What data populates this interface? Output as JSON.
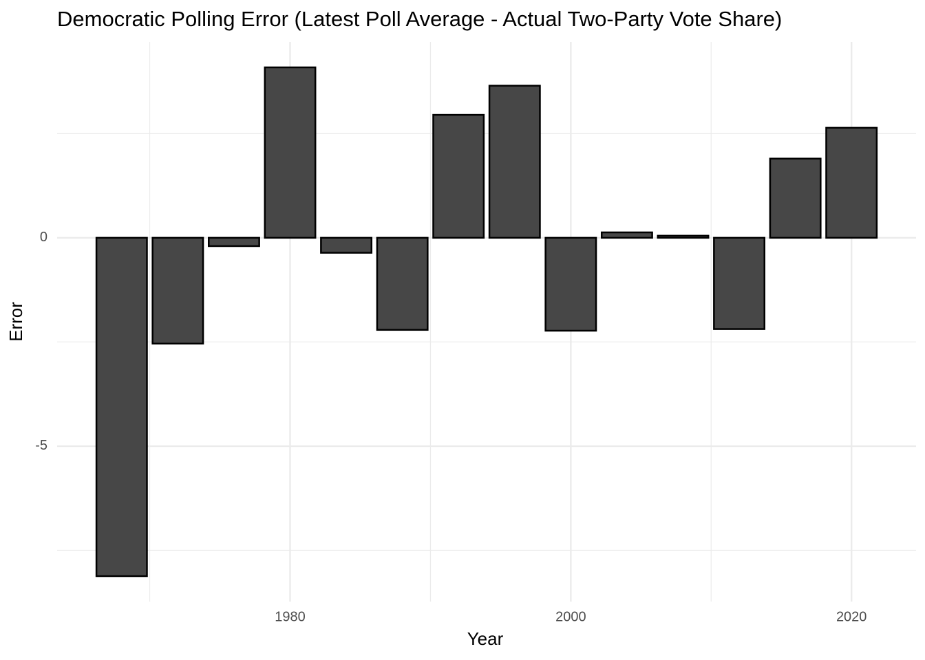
{
  "chart_data": {
    "type": "bar",
    "title": "Democratic Polling Error (Latest Poll Average - Actual Two-Party Vote Share)",
    "xlabel": "Year",
    "ylabel": "Error",
    "x": [
      1968,
      1972,
      1976,
      1980,
      1984,
      1988,
      1992,
      1996,
      2000,
      2004,
      2008,
      2012,
      2016,
      2020
    ],
    "values": [
      -8.12,
      -2.54,
      -0.2,
      4.09,
      -0.36,
      -2.21,
      2.95,
      3.65,
      -2.23,
      0.13,
      0.05,
      -2.19,
      1.9,
      2.64
    ],
    "color": "#474747",
    "edgecolor": "#000000",
    "xlim": [
      1963.4,
      2024.6
    ],
    "xticks": [
      1980,
      2000,
      2020
    ],
    "xminorticks": [
      1970,
      1990,
      2010
    ],
    "ylim": [
      -8.73,
      4.7
    ],
    "yticks": [
      -5,
      0
    ],
    "yminorticks": [
      -7.5,
      -2.5,
      2.5
    ],
    "grid": true
  }
}
